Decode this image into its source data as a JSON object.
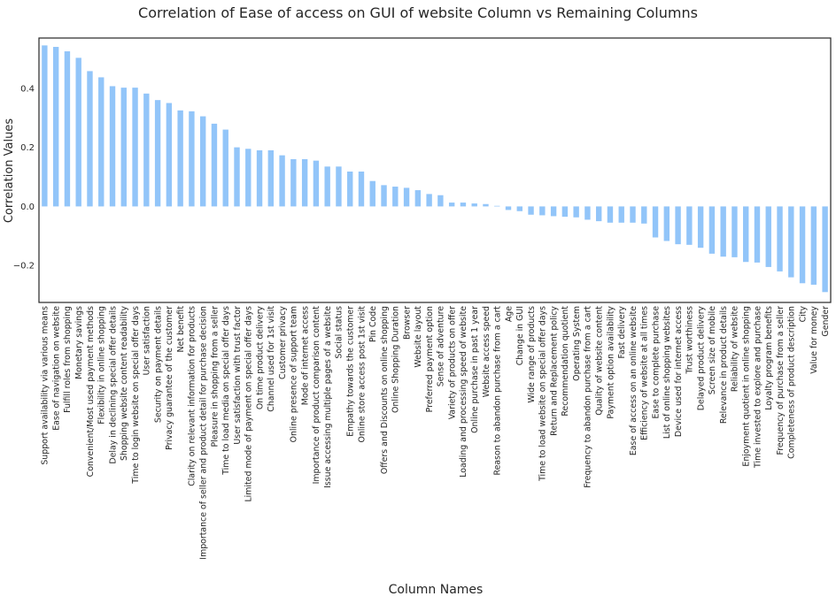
{
  "chart_data": {
    "type": "bar",
    "title": "Correlation of Ease of access on GUI of website Column vs Remaining Columns",
    "xlabel": "Column Names",
    "ylabel": "Correlation Values",
    "ylim": [
      -0.325,
      0.57
    ],
    "yticks": [
      -0.2,
      0.0,
      0.2,
      0.4
    ],
    "ytick_labels": [
      "−0.2",
      "0.0",
      "0.2",
      "0.4"
    ],
    "bar_color": "#92C5F9",
    "grid": false,
    "categories": [
      "Support availability via various means",
      "Ease of navigation on website",
      "Fulfill roles from shopping",
      "Monetary savings",
      "Convenient/Most used payment methods",
      "Flexibility in online shopping",
      "Delay in declining special offer details",
      "Shopping website content readability",
      "Time to login website on special offer days",
      "User satisfaction",
      "Security on payment details",
      "Privacy guarantee of the customer",
      "Net benefit",
      "Clarity on relevant information for products",
      "Importance of seller and product detail for purchase decision",
      "Pleasure in shopping from a seller",
      "Time to load media on special offer days",
      "User satisfaction with trust factor",
      "Limited mode of payment on special offer days",
      "On time product delivery",
      "Channel used for 1st visit",
      "Customer privacy",
      "Online presence of support team",
      "Mode of internet access",
      "Importance of product comparison content",
      "Issue accessing multiple pages of a website",
      "Social status",
      "Empathy towards the customer",
      "Online store access post 1st visit",
      "Pin Code",
      "Offers and Discounts on online shopping",
      "Online Shopping Duration",
      "Browser",
      "Website layout",
      "Preferred payment option",
      "Sense of adventure",
      "Variety of products on offer",
      "Loading and processing speed of website",
      "Online purchase in past 1 year",
      "Website access speed",
      "Reason to abandon purchase from a cart",
      "Age",
      "Change in GUI",
      "Wide range of products",
      "Time to load website on special offer days",
      "Return and Replacement policy",
      "Recommendation quotient",
      "Operating System",
      "Frequency to abandon purchase from a cart",
      "Quality of website content",
      "Payment option availability",
      "Fast delivery",
      "Ease of access on an online website",
      "Efficiency of website at all times",
      "Ease to complete purchase",
      "List of online shopping websites",
      "Device used for internet access",
      "Trust worthiness",
      "Delayed product delivery",
      "Screen size of mobile",
      "Relevance in product details",
      "Reliability of website",
      "Enjoyment quotient in online shopping",
      "Time invested to explore and purchase",
      "Loyalty program benefits",
      "Frequency of purchase from a seller",
      "Completeness of product description",
      "City",
      "Value for money",
      "Gender"
    ],
    "values": [
      0.545,
      0.54,
      0.525,
      0.503,
      0.458,
      0.437,
      0.407,
      0.402,
      0.402,
      0.382,
      0.36,
      0.35,
      0.325,
      0.322,
      0.305,
      0.28,
      0.26,
      0.2,
      0.195,
      0.19,
      0.19,
      0.173,
      0.16,
      0.16,
      0.155,
      0.135,
      0.135,
      0.118,
      0.118,
      0.086,
      0.072,
      0.067,
      0.063,
      0.055,
      0.042,
      0.038,
      0.013,
      0.013,
      0.01,
      0.008,
      0.002,
      -0.012,
      -0.016,
      -0.028,
      -0.03,
      -0.033,
      -0.035,
      -0.037,
      -0.045,
      -0.05,
      -0.055,
      -0.055,
      -0.055,
      -0.058,
      -0.105,
      -0.117,
      -0.128,
      -0.13,
      -0.14,
      -0.16,
      -0.17,
      -0.172,
      -0.188,
      -0.19,
      -0.205,
      -0.22,
      -0.24,
      -0.26,
      -0.265,
      -0.29
    ]
  }
}
